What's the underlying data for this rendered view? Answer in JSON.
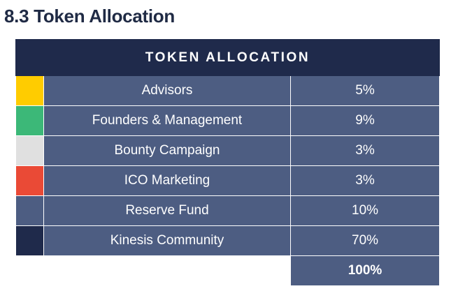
{
  "section_heading": "8.3 Token Allocation",
  "table": {
    "title": "TOKEN ALLOCATION",
    "rows": [
      {
        "label": "Advisors",
        "value": "5%",
        "color": "#ffcc00"
      },
      {
        "label": "Founders & Management",
        "value": "9%",
        "color": "#3cb878"
      },
      {
        "label": "Bounty Campaign",
        "value": "3%",
        "color": "#e0e0e0"
      },
      {
        "label": "ICO Marketing",
        "value": "3%",
        "color": "#ea4a36"
      },
      {
        "label": "Reserve Fund",
        "value": "10%",
        "color": "#4d5d82"
      },
      {
        "label": "Kinesis Community",
        "value": "70%",
        "color": "#1f2a4b"
      }
    ],
    "total": "100%"
  }
}
